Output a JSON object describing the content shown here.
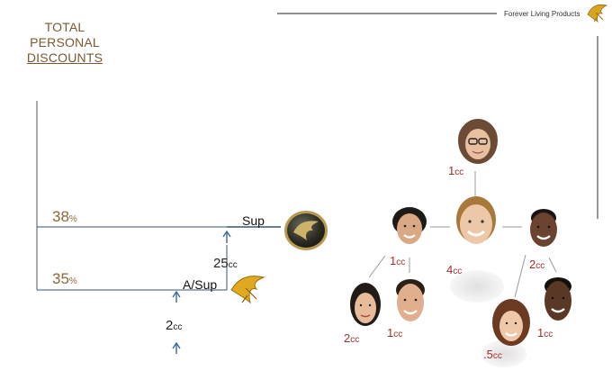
{
  "header": {
    "title_lines": [
      "TOTAL",
      "PERSONAL",
      "DISCOUNTS"
    ],
    "brand": "Forever Living Products",
    "brand_icon": "forever-eagle-logo-icon"
  },
  "levels": [
    {
      "percent": "38",
      "percent_sign": "%",
      "label": "Sup",
      "requirement_value": "25",
      "requirement_unit": "cc",
      "icon": "supervisor-medal-icon"
    },
    {
      "percent": "35",
      "percent_sign": "%",
      "label": "A/Sup",
      "requirement_value": "2",
      "requirement_unit": "cc",
      "icon": "gold-eagle-icon"
    }
  ],
  "team": [
    {
      "id": "top",
      "value": "1",
      "unit": "cc"
    },
    {
      "id": "center",
      "value": "4",
      "unit": "cc"
    },
    {
      "id": "left",
      "value": "1",
      "unit": "cc"
    },
    {
      "id": "right",
      "value": "2",
      "unit": "cc"
    },
    {
      "id": "left-down-left",
      "value": "2",
      "unit": "cc"
    },
    {
      "id": "left-down-right",
      "value": "1",
      "unit": "cc"
    },
    {
      "id": "right-down-left",
      "value": ".5",
      "unit": "cc"
    },
    {
      "id": "right-down-right",
      "value": "1",
      "unit": "cc"
    }
  ],
  "colors": {
    "title": "#7a5a2e",
    "percent": "#8a6a3a",
    "cc_red": "#a0312a",
    "line": "#3a5470",
    "arrow": "#3a6a9a"
  }
}
